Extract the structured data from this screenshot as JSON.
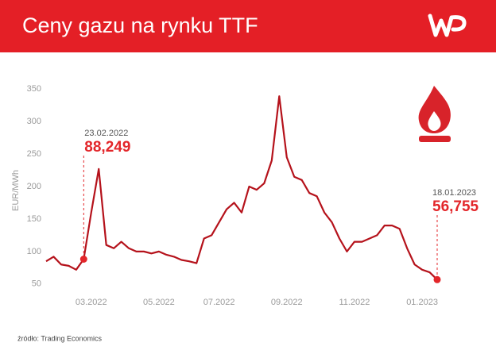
{
  "chart_data": {
    "type": "line",
    "title": "Ceny gazu na rynku TTF",
    "y_label": "EUR/MWh",
    "source": "źródło: Trading Economics",
    "categories": [
      null,
      null,
      null,
      null,
      null,
      null,
      "03.2022",
      null,
      null,
      null,
      null,
      null,
      null,
      null,
      null,
      "05.2022",
      null,
      null,
      null,
      null,
      null,
      null,
      null,
      "07.2022",
      null,
      null,
      null,
      null,
      null,
      null,
      null,
      null,
      "09.2022",
      null,
      null,
      null,
      null,
      null,
      null,
      null,
      null,
      "11.2022",
      null,
      null,
      null,
      null,
      null,
      null,
      null,
      null,
      "01.2023",
      null,
      null
    ],
    "series": [
      {
        "name": "TTF",
        "color": "#b5121b",
        "values": [
          85,
          92,
          80,
          78,
          72,
          88.249,
          160,
          227,
          110,
          105,
          115,
          105,
          100,
          100,
          97,
          100,
          95,
          92,
          87,
          85,
          82,
          120,
          125,
          145,
          165,
          175,
          160,
          200,
          195,
          205,
          240,
          339,
          245,
          215,
          210,
          190,
          185,
          160,
          145,
          120,
          100,
          115,
          115,
          120,
          125,
          140,
          140,
          135,
          105,
          80,
          72,
          68,
          56.755
        ],
        "value_labels": [
          null,
          null,
          null,
          null,
          null,
          "88,249",
          null,
          null,
          null,
          null,
          null,
          null,
          null,
          null,
          null,
          null,
          null,
          null,
          null,
          null,
          null,
          null,
          null,
          null,
          null,
          null,
          null,
          null,
          null,
          null,
          null,
          null,
          null,
          null,
          null,
          null,
          null,
          null,
          null,
          null,
          null,
          null,
          null,
          null,
          null,
          null,
          null,
          null,
          null,
          null,
          null,
          null,
          "56,755"
        ]
      }
    ],
    "annotations": [
      "23.02.2022",
      "18.01.2023"
    ],
    "annotation_color": "#e3262a",
    "ylim": [
      40,
      360
    ],
    "yticks": [
      50,
      100,
      150,
      200,
      250,
      300,
      350
    ]
  }
}
